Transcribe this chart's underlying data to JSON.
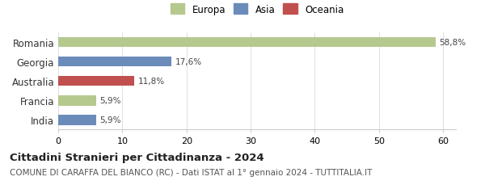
{
  "categories": [
    "Romania",
    "Georgia",
    "Australia",
    "Francia",
    "India"
  ],
  "values": [
    58.8,
    17.6,
    11.8,
    5.9,
    5.9
  ],
  "labels": [
    "58,8%",
    "17,6%",
    "11,8%",
    "5,9%",
    "5,9%"
  ],
  "bar_colors": [
    "#b5c98e",
    "#6b8cba",
    "#c0504d",
    "#b5c98e",
    "#6b8cba"
  ],
  "legend_items": [
    {
      "label": "Europa",
      "color": "#b5c98e"
    },
    {
      "label": "Asia",
      "color": "#6b8cba"
    },
    {
      "label": "Oceania",
      "color": "#c0504d"
    }
  ],
  "xlim": [
    0,
    62
  ],
  "xticks": [
    0,
    10,
    20,
    30,
    40,
    50,
    60
  ],
  "title": "Cittadini Stranieri per Cittadinanza - 2024",
  "subtitle": "COMUNE DI CARAFFA DEL BIANCO (RC) - Dati ISTAT al 1° gennaio 2024 - TUTTITALIA.IT",
  "title_fontsize": 9.5,
  "subtitle_fontsize": 7.5,
  "background_color": "#ffffff",
  "bar_height": 0.52
}
